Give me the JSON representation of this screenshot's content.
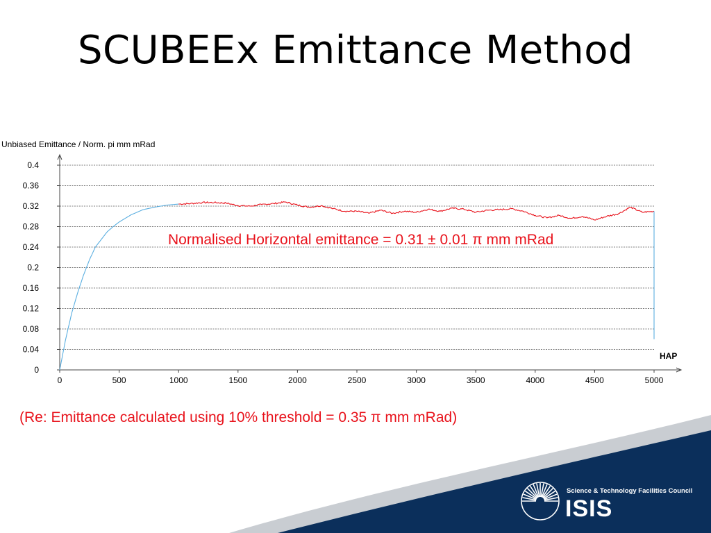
{
  "slide": {
    "title": "SCUBEEx Emittance Method",
    "footnote": "(Re: Emittance calculated using 10% threshold = 0.35 π mm mRad)"
  },
  "logo": {
    "organisation": "Science & Technology Facilities Council",
    "name": "ISIS"
  },
  "colors": {
    "accent_red": "#e8121b",
    "series_blue": "#5aaee0",
    "series_red": "#e8121b",
    "navy": "#0b2f5b",
    "swoosh_grey": "#c9cdd2"
  },
  "chart_data": {
    "type": "line",
    "ylabel": "Unbiased Emittance / Norm. pi mm mRad",
    "xlabel": "HAP",
    "xlim": [
      0,
      5000
    ],
    "ylim": [
      0,
      0.4
    ],
    "xticks": [
      0,
      500,
      1000,
      1500,
      2000,
      2500,
      3000,
      3500,
      4000,
      4500,
      5000
    ],
    "yticks": [
      "0",
      "0.04",
      "0.08",
      "0.12",
      "0.16",
      "0.2",
      "0.24",
      "0.28",
      "0.32",
      "0.36",
      "0.4"
    ],
    "grid": "horizontal",
    "annotation": "Normalised Horizontal emittance = 0.31 ± 0.01 π mm mRad",
    "series": [
      {
        "color": "#5aaee0",
        "x": [
          0,
          25,
          50,
          100,
          150,
          200,
          250,
          300,
          350,
          400,
          450,
          500,
          600,
          700,
          800,
          900,
          1000
        ],
        "y": [
          0,
          0.03,
          0.06,
          0.11,
          0.15,
          0.185,
          0.215,
          0.24,
          0.255,
          0.27,
          0.28,
          0.289,
          0.303,
          0.313,
          0.318,
          0.322,
          0.324
        ]
      },
      {
        "color": "#e8121b",
        "x": [
          1000,
          1100,
          1200,
          1300,
          1400,
          1500,
          1600,
          1700,
          1800,
          1900,
          2000,
          2100,
          2200,
          2300,
          2400,
          2500,
          2600,
          2700,
          2800,
          2900,
          3000,
          3100,
          3200,
          3300,
          3400,
          3500,
          3600,
          3700,
          3800,
          3900,
          4000,
          4100,
          4200,
          4300,
          4400,
          4500,
          4600,
          4700,
          4800,
          4900,
          5000
        ],
        "y": [
          0.324,
          0.325,
          0.327,
          0.327,
          0.326,
          0.321,
          0.32,
          0.323,
          0.325,
          0.328,
          0.322,
          0.318,
          0.321,
          0.315,
          0.31,
          0.31,
          0.306,
          0.312,
          0.306,
          0.31,
          0.308,
          0.314,
          0.31,
          0.316,
          0.314,
          0.308,
          0.312,
          0.313,
          0.315,
          0.31,
          0.302,
          0.297,
          0.302,
          0.296,
          0.3,
          0.293,
          0.3,
          0.305,
          0.318,
          0.308,
          0.31
        ]
      },
      {
        "color": "#5aaee0",
        "x": [
          5000,
          5000
        ],
        "y": [
          0.31,
          0.06
        ]
      }
    ]
  }
}
